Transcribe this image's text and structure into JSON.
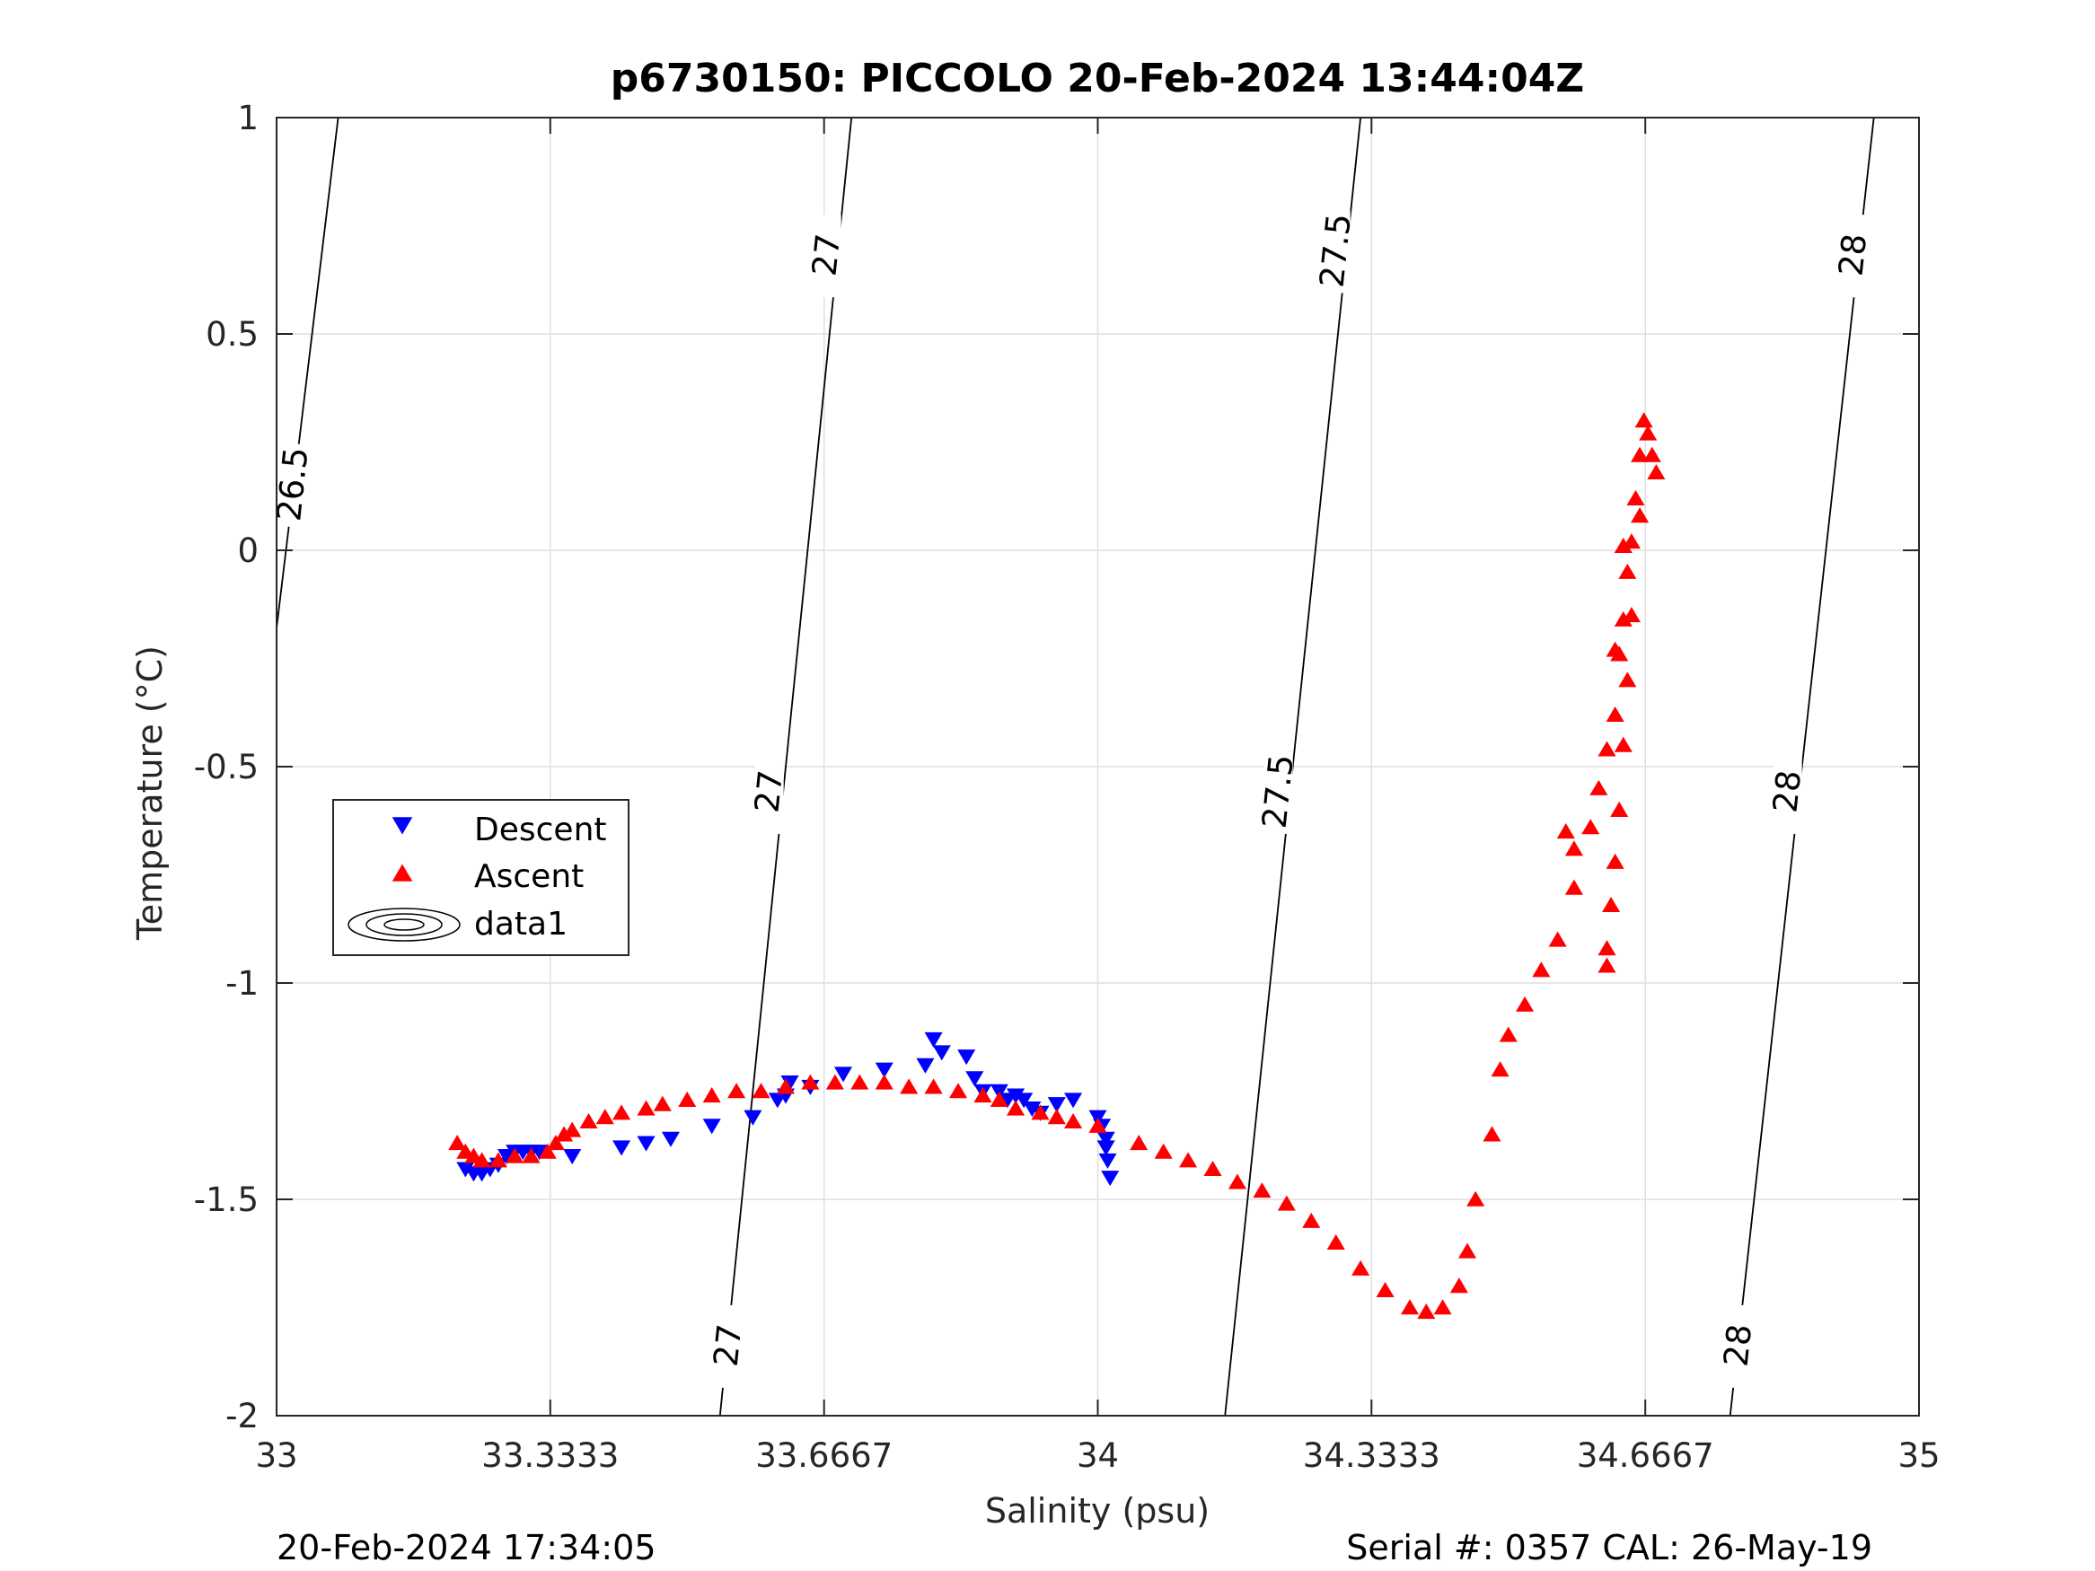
{
  "chart_data": {
    "type": "scatter",
    "title": "p6730150: PICCOLO 20-Feb-2024 13:44:04Z",
    "xlabel": "Salinity (psu)",
    "ylabel": "Temperature (°C)",
    "xlim": [
      33,
      35
    ],
    "ylim": [
      -2,
      1
    ],
    "x_ticks": [
      33,
      33.3333,
      33.6667,
      34,
      34.3333,
      34.6667,
      35
    ],
    "x_tick_labels": [
      "33",
      "33.3333",
      "33.6667",
      "34",
      "34.3333",
      "34.6667",
      "35"
    ],
    "y_ticks": [
      -2,
      -1.5,
      -1,
      -0.5,
      0,
      0.5,
      1
    ],
    "y_tick_labels": [
      "-2",
      "-1.5",
      "-1",
      "-0.5",
      "0",
      "0.5",
      "1"
    ],
    "grid": true,
    "legend_position": "left-middle",
    "legend": [
      "Descent",
      "Ascent",
      "data1"
    ],
    "series": [
      {
        "name": "Descent",
        "marker": "triangle-down",
        "color": "#0000ff",
        "points": [
          [
            33.23,
            -1.43
          ],
          [
            33.24,
            -1.44
          ],
          [
            33.25,
            -1.44
          ],
          [
            33.26,
            -1.43
          ],
          [
            33.27,
            -1.42
          ],
          [
            33.28,
            -1.4
          ],
          [
            33.29,
            -1.39
          ],
          [
            33.3,
            -1.39
          ],
          [
            33.31,
            -1.39
          ],
          [
            33.32,
            -1.39
          ],
          [
            33.36,
            -1.4
          ],
          [
            33.42,
            -1.38
          ],
          [
            33.45,
            -1.37
          ],
          [
            33.48,
            -1.36
          ],
          [
            33.53,
            -1.33
          ],
          [
            33.58,
            -1.31
          ],
          [
            33.61,
            -1.27
          ],
          [
            33.62,
            -1.26
          ],
          [
            33.625,
            -1.23
          ],
          [
            33.65,
            -1.24
          ],
          [
            33.69,
            -1.21
          ],
          [
            33.74,
            -1.2
          ],
          [
            33.79,
            -1.19
          ],
          [
            33.8,
            -1.13
          ],
          [
            33.81,
            -1.16
          ],
          [
            33.84,
            -1.17
          ],
          [
            33.85,
            -1.22
          ],
          [
            33.86,
            -1.25
          ],
          [
            33.88,
            -1.25
          ],
          [
            33.89,
            -1.27
          ],
          [
            33.9,
            -1.26
          ],
          [
            33.91,
            -1.27
          ],
          [
            33.92,
            -1.29
          ],
          [
            33.93,
            -1.3
          ],
          [
            33.95,
            -1.28
          ],
          [
            33.97,
            -1.27
          ],
          [
            34.0,
            -1.31
          ],
          [
            34.005,
            -1.33
          ],
          [
            34.01,
            -1.38
          ],
          [
            34.012,
            -1.41
          ],
          [
            34.015,
            -1.45
          ],
          [
            34.01,
            -1.36
          ]
        ]
      },
      {
        "name": "Ascent",
        "marker": "triangle-up",
        "color": "#ff0000",
        "points": [
          [
            33.22,
            -1.37
          ],
          [
            33.23,
            -1.39
          ],
          [
            33.24,
            -1.4
          ],
          [
            33.25,
            -1.41
          ],
          [
            33.27,
            -1.41
          ],
          [
            33.29,
            -1.4
          ],
          [
            33.31,
            -1.4
          ],
          [
            33.33,
            -1.39
          ],
          [
            33.34,
            -1.37
          ],
          [
            33.35,
            -1.35
          ],
          [
            33.36,
            -1.34
          ],
          [
            33.38,
            -1.32
          ],
          [
            33.4,
            -1.31
          ],
          [
            33.42,
            -1.3
          ],
          [
            33.45,
            -1.29
          ],
          [
            33.47,
            -1.28
          ],
          [
            33.5,
            -1.27
          ],
          [
            33.53,
            -1.26
          ],
          [
            33.56,
            -1.25
          ],
          [
            33.59,
            -1.25
          ],
          [
            33.62,
            -1.24
          ],
          [
            33.65,
            -1.23
          ],
          [
            33.68,
            -1.23
          ],
          [
            33.71,
            -1.23
          ],
          [
            33.74,
            -1.23
          ],
          [
            33.77,
            -1.24
          ],
          [
            33.8,
            -1.24
          ],
          [
            33.83,
            -1.25
          ],
          [
            33.86,
            -1.26
          ],
          [
            33.88,
            -1.27
          ],
          [
            33.9,
            -1.29
          ],
          [
            33.93,
            -1.3
          ],
          [
            33.95,
            -1.31
          ],
          [
            33.97,
            -1.32
          ],
          [
            34.0,
            -1.33
          ],
          [
            34.05,
            -1.37
          ],
          [
            34.08,
            -1.39
          ],
          [
            34.11,
            -1.41
          ],
          [
            34.14,
            -1.43
          ],
          [
            34.17,
            -1.46
          ],
          [
            34.2,
            -1.48
          ],
          [
            34.23,
            -1.51
          ],
          [
            34.26,
            -1.55
          ],
          [
            34.29,
            -1.6
          ],
          [
            34.32,
            -1.66
          ],
          [
            34.35,
            -1.71
          ],
          [
            34.38,
            -1.75
          ],
          [
            34.4,
            -1.76
          ],
          [
            34.42,
            -1.75
          ],
          [
            34.44,
            -1.7
          ],
          [
            34.45,
            -1.62
          ],
          [
            34.46,
            -1.5
          ],
          [
            34.48,
            -1.35
          ],
          [
            34.49,
            -1.2
          ],
          [
            34.5,
            -1.12
          ],
          [
            34.52,
            -1.05
          ],
          [
            34.54,
            -0.97
          ],
          [
            34.56,
            -0.9
          ],
          [
            34.58,
            -0.78
          ],
          [
            34.6,
            -0.64
          ],
          [
            34.61,
            -0.55
          ],
          [
            34.62,
            -0.46
          ],
          [
            34.63,
            -0.38
          ],
          [
            34.635,
            -0.24
          ],
          [
            34.64,
            -0.16
          ],
          [
            34.645,
            -0.05
          ],
          [
            34.65,
            0.02
          ],
          [
            34.655,
            0.12
          ],
          [
            34.66,
            0.22
          ],
          [
            34.665,
            0.3
          ],
          [
            34.67,
            0.27
          ],
          [
            34.675,
            0.22
          ],
          [
            34.68,
            0.18
          ],
          [
            34.66,
            0.08
          ],
          [
            34.65,
            -0.15
          ],
          [
            34.645,
            -0.3
          ],
          [
            34.64,
            -0.45
          ],
          [
            34.635,
            -0.6
          ],
          [
            34.63,
            -0.72
          ],
          [
            34.625,
            -0.82
          ],
          [
            34.62,
            -0.92
          ],
          [
            34.62,
            -0.96
          ],
          [
            34.64,
            0.01
          ],
          [
            34.63,
            -0.23
          ],
          [
            34.58,
            -0.69
          ],
          [
            34.57,
            -0.65
          ]
        ]
      },
      {
        "name": "data1",
        "type": "contour",
        "color": "#000000",
        "levels": [
          26.5,
          27,
          27.5,
          28
        ],
        "lines": [
          {
            "level": 26.5,
            "points": [
              [
                33.0,
                -0.18
              ],
              [
                33.075,
                1.0
              ]
            ]
          },
          {
            "level": 27,
            "points": [
              [
                33.54,
                -2.0
              ],
              [
                33.7,
                1.0
              ]
            ]
          },
          {
            "level": 27.5,
            "points": [
              [
                34.155,
                -2.0
              ],
              [
                34.32,
                1.0
              ]
            ]
          },
          {
            "level": 28,
            "points": [
              [
                34.77,
                -2.0
              ],
              [
                34.945,
                1.0
              ]
            ]
          }
        ],
        "labels": [
          {
            "text": "26.5",
            "x": 33.02,
            "y": 0.15
          },
          {
            "text": "27",
            "x": 33.67,
            "y": 0.68
          },
          {
            "text": "27",
            "x": 33.6,
            "y": -0.56
          },
          {
            "text": "27",
            "x": 33.55,
            "y": -1.84
          },
          {
            "text": "27.5",
            "x": 34.29,
            "y": 0.69
          },
          {
            "text": "27.5",
            "x": 34.22,
            "y": -0.56
          },
          {
            "text": "28",
            "x": 34.92,
            "y": 0.68
          },
          {
            "text": "28",
            "x": 34.84,
            "y": -0.56
          },
          {
            "text": "28",
            "x": 34.78,
            "y": -1.84
          }
        ]
      }
    ]
  },
  "footer": {
    "left": "20-Feb-2024 17:34:05",
    "right": "Serial #: 0357  CAL: 26-May-19"
  }
}
